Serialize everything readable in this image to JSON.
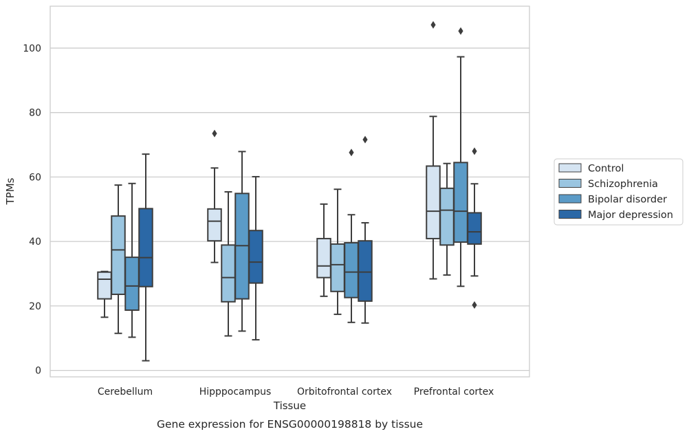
{
  "chart_data": {
    "type": "box",
    "caption": "Gene expression for ENSG00000198818 by tissue",
    "xlabel": "Tissue",
    "ylabel": "TPMs",
    "ylim": [
      -2,
      113
    ],
    "yticks": [
      0,
      20,
      40,
      60,
      80,
      100
    ],
    "grid": "horizontal",
    "legend_position": "right",
    "categories": [
      "Cerebellum",
      "Hipppocampus",
      "Orbitofrontal cortex",
      "Prefrontal cortex"
    ],
    "series": [
      {
        "name": "Control",
        "color": "#d5e4f2",
        "boxes": [
          {
            "whislo": 16.5,
            "q1": 22.2,
            "med": 28.3,
            "q3": 30.5,
            "whishi": 30.7,
            "fliers": []
          },
          {
            "whislo": 33.5,
            "q1": 40.2,
            "med": 46.3,
            "q3": 50.1,
            "whishi": 62.8,
            "fliers": [
              73.5
            ]
          },
          {
            "whislo": 23.0,
            "q1": 28.8,
            "med": 32.4,
            "q3": 40.9,
            "whishi": 51.6,
            "fliers": []
          },
          {
            "whislo": 28.4,
            "q1": 40.9,
            "med": 49.4,
            "q3": 63.4,
            "whishi": 78.8,
            "fliers": [
              107.2
            ]
          }
        ]
      },
      {
        "name": "Schizophrenia",
        "color": "#9ac5e0",
        "boxes": [
          {
            "whislo": 11.5,
            "q1": 23.6,
            "med": 37.4,
            "q3": 47.9,
            "whishi": 57.5,
            "fliers": []
          },
          {
            "whislo": 10.7,
            "q1": 21.3,
            "med": 28.8,
            "q3": 38.9,
            "whishi": 55.4,
            "fliers": []
          },
          {
            "whislo": 17.4,
            "q1": 24.5,
            "med": 32.8,
            "q3": 39.2,
            "whishi": 56.2,
            "fliers": []
          },
          {
            "whislo": 29.6,
            "q1": 38.9,
            "med": 49.7,
            "q3": 56.5,
            "whishi": 64.2,
            "fliers": []
          }
        ]
      },
      {
        "name": "Bipolar disorder",
        "color": "#5b9bc7",
        "boxes": [
          {
            "whislo": 10.3,
            "q1": 18.7,
            "med": 26.2,
            "q3": 35.1,
            "whishi": 58.0,
            "fliers": []
          },
          {
            "whislo": 12.2,
            "q1": 22.2,
            "med": 38.7,
            "q3": 54.9,
            "whishi": 67.9,
            "fliers": []
          },
          {
            "whislo": 14.9,
            "q1": 22.6,
            "med": 30.5,
            "q3": 39.6,
            "whishi": 48.3,
            "fliers": [
              67.6
            ]
          },
          {
            "whislo": 26.1,
            "q1": 39.8,
            "med": 49.4,
            "q3": 64.5,
            "whishi": 97.3,
            "fliers": [
              105.3
            ]
          }
        ]
      },
      {
        "name": "Major depression",
        "color": "#2b68a6",
        "boxes": [
          {
            "whislo": 3.0,
            "q1": 26.0,
            "med": 35.0,
            "q3": 50.2,
            "whishi": 67.1,
            "fliers": []
          },
          {
            "whislo": 9.5,
            "q1": 27.1,
            "med": 33.6,
            "q3": 43.4,
            "whishi": 60.1,
            "fliers": []
          },
          {
            "whislo": 14.7,
            "q1": 21.5,
            "med": 30.5,
            "q3": 40.2,
            "whishi": 45.8,
            "fliers": [
              71.6
            ]
          },
          {
            "whislo": 29.3,
            "q1": 39.2,
            "med": 43.0,
            "q3": 48.9,
            "whishi": 57.9,
            "fliers": [
              68.0,
              20.3
            ]
          }
        ]
      }
    ]
  }
}
